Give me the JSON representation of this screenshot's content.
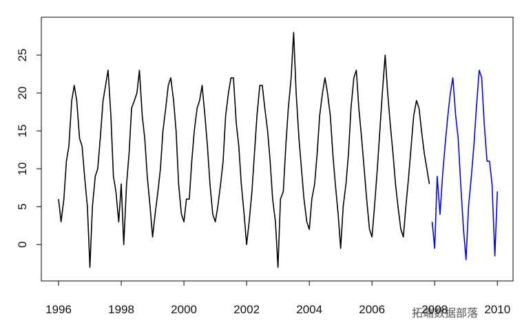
{
  "chart_data": {
    "type": "line",
    "xlim": [
      1995.45,
      2010.5
    ],
    "ylim": [
      -4.8,
      30
    ],
    "xticks": [
      1996,
      1998,
      2000,
      2002,
      2004,
      2006,
      2008,
      2010
    ],
    "yticks": [
      0,
      5,
      10,
      15,
      20,
      25
    ],
    "watermark": "拓端数据部落",
    "series": [
      {
        "color": "#000000",
        "x": [
          1996,
          1996.08,
          1996.17,
          1996.25,
          1996.33,
          1996.42,
          1996.5,
          1996.58,
          1996.67,
          1996.75,
          1996.83,
          1996.92,
          1997,
          1997.08,
          1997.17,
          1997.25,
          1997.33,
          1997.42,
          1997.5,
          1997.58,
          1997.67,
          1997.75,
          1997.83,
          1997.92,
          1998,
          1998.08,
          1998.17,
          1998.25,
          1998.33,
          1998.42,
          1998.5,
          1998.58,
          1998.67,
          1998.75,
          1998.83,
          1998.92,
          1999,
          1999.08,
          1999.17,
          1999.25,
          1999.33,
          1999.42,
          1999.5,
          1999.58,
          1999.67,
          1999.75,
          1999.83,
          1999.92,
          2000,
          2000.08,
          2000.17,
          2000.25,
          2000.33,
          2000.42,
          2000.5,
          2000.58,
          2000.67,
          2000.75,
          2000.83,
          2000.92,
          2001,
          2001.08,
          2001.17,
          2001.25,
          2001.33,
          2001.42,
          2001.5,
          2001.58,
          2001.67,
          2001.75,
          2001.83,
          2001.92,
          2002,
          2002.08,
          2002.17,
          2002.25,
          2002.33,
          2002.42,
          2002.5,
          2002.58,
          2002.67,
          2002.75,
          2002.83,
          2002.92,
          2003,
          2003.08,
          2003.17,
          2003.25,
          2003.33,
          2003.42,
          2003.5,
          2003.58,
          2003.67,
          2003.75,
          2003.83,
          2003.92,
          2004,
          2004.08,
          2004.17,
          2004.25,
          2004.33,
          2004.42,
          2004.5,
          2004.58,
          2004.67,
          2004.75,
          2004.83,
          2004.92,
          2005,
          2005.08,
          2005.17,
          2005.25,
          2005.33,
          2005.42,
          2005.5,
          2005.58,
          2005.67,
          2005.75,
          2005.83,
          2005.92,
          2006,
          2006.08,
          2006.17,
          2006.25,
          2006.33,
          2006.42,
          2006.5,
          2006.58,
          2006.67,
          2006.75,
          2006.83,
          2006.92,
          2007,
          2007.08,
          2007.17,
          2007.25,
          2007.33,
          2007.42,
          2007.5,
          2007.58,
          2007.67,
          2007.75,
          2007.83
        ],
        "values": [
          6,
          3,
          6,
          11,
          13,
          19,
          21,
          19,
          14,
          13,
          9,
          5,
          -3,
          5,
          9,
          10,
          14,
          19,
          21,
          23,
          17,
          9,
          7,
          3,
          8,
          0,
          8,
          12,
          18,
          19,
          20,
          23,
          17,
          14,
          9,
          5,
          1,
          4,
          7,
          10,
          15,
          18,
          21,
          22,
          19,
          15,
          8,
          4,
          3,
          6,
          6,
          11,
          15,
          18,
          19,
          21,
          17,
          13,
          8,
          4,
          3,
          5,
          8,
          11,
          17,
          20,
          22,
          22,
          16,
          13,
          8,
          4,
          0,
          3,
          7,
          12,
          17,
          21,
          21,
          18,
          15,
          11,
          6,
          3,
          -3,
          6,
          7,
          13,
          18,
          22,
          28,
          20,
          14,
          10,
          6,
          3,
          2,
          6,
          8,
          12,
          17,
          20,
          22,
          20,
          17,
          12,
          8,
          4,
          -0.5,
          5,
          8,
          12,
          18,
          22,
          23,
          18,
          14,
          10,
          6,
          2,
          1,
          5,
          10,
          15,
          20,
          25,
          20,
          16,
          12,
          8,
          5,
          2,
          1,
          5,
          9,
          13,
          17,
          19,
          18,
          15,
          12,
          10,
          8
        ]
      },
      {
        "color": "#0000ff",
        "x": [
          2007.92,
          2008,
          2008.08,
          2008.17,
          2008.25,
          2008.33,
          2008.42,
          2008.5,
          2008.58,
          2008.67,
          2008.75,
          2008.83,
          2008.92,
          2009,
          2009.08,
          2009.17,
          2009.25,
          2009.33,
          2009.42,
          2009.5,
          2009.58,
          2009.67,
          2009.75,
          2009.83,
          2009.92,
          2010
        ],
        "values": [
          3,
          -0.5,
          9,
          4,
          9,
          13,
          17,
          20,
          22,
          17,
          14,
          8,
          2,
          -2,
          5,
          9,
          13,
          18,
          23,
          22,
          16,
          11,
          11,
          8,
          -1.5,
          7
        ]
      }
    ]
  }
}
